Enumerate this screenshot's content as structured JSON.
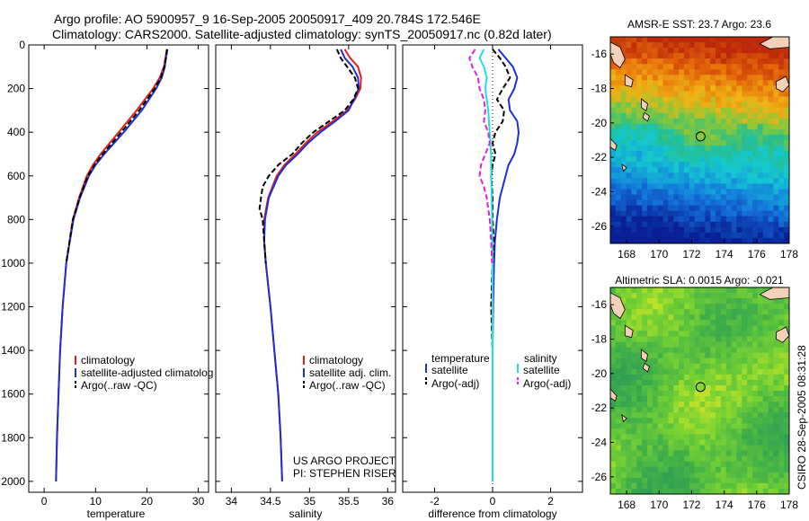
{
  "title_line1": "Argo profile: AO 5900957_9 16-Sep-2005 20050917_409 20.784S 172.546E",
  "title_line2": "Climatology: CARS2000. Satellite-adjusted climatology: synTS_20050917.nc (0.82d later)",
  "side_text": "CSIRO 28-Sep-2005 08:31:28",
  "project_line1": "US ARGO PROJECT",
  "project_line2": "PI: STEPHEN RISER",
  "colors": {
    "climatology": "#e02020",
    "satellite": "#2030d0",
    "argo": "#000000",
    "satellite_sal": "#20e0e0",
    "argo_sal": "#e020e0"
  },
  "chart_data": [
    {
      "type": "line",
      "xlabel": "temperature",
      "ylabel": "",
      "xlim": [
        -3,
        32
      ],
      "ylim": [
        2050,
        0
      ],
      "xticks": [
        0,
        10,
        20,
        30
      ],
      "yticks": [
        0,
        200,
        400,
        600,
        800,
        1000,
        1200,
        1400,
        1600,
        1800,
        2000
      ],
      "legend": {
        "position": "lower-right",
        "entries": [
          "climatology",
          "satellite-adjusted climatolog",
          "Argo(..raw -QC)"
        ]
      },
      "series": [
        {
          "name": "climatology",
          "color": "#e02020",
          "style": "solid",
          "depth": [
            20,
            60,
            100,
            150,
            200,
            300,
            400,
            500,
            550,
            600,
            700,
            800,
            1000,
            1200,
            1400,
            1600,
            1800,
            2000
          ],
          "values": [
            23.9,
            23.6,
            23.3,
            22.5,
            21.2,
            18.0,
            14.5,
            11.0,
            9.5,
            8.3,
            6.8,
            5.6,
            4.3,
            3.6,
            3.1,
            2.8,
            2.5,
            2.3
          ]
        },
        {
          "name": "satellite-adjusted climatolog",
          "color": "#2030d0",
          "style": "solid",
          "depth": [
            20,
            60,
            100,
            150,
            200,
            300,
            400,
            500,
            550,
            600,
            700,
            800,
            1000,
            1200,
            1400,
            1600,
            1800,
            2000
          ],
          "values": [
            24.0,
            23.7,
            23.5,
            22.9,
            21.8,
            19.0,
            15.5,
            11.7,
            10.0,
            8.7,
            7.0,
            5.7,
            4.3,
            3.6,
            3.1,
            2.8,
            2.5,
            2.3
          ]
        },
        {
          "name": "Argo(..raw -QC)",
          "color": "#000000",
          "style": "dashed",
          "depth": [
            20,
            60,
            100,
            150,
            200,
            300,
            400,
            500,
            550,
            600,
            700,
            800,
            1000
          ],
          "values": [
            23.9,
            23.7,
            23.4,
            22.7,
            21.5,
            18.5,
            15.0,
            11.4,
            9.8,
            8.5,
            6.9,
            5.6,
            4.3
          ]
        }
      ]
    },
    {
      "type": "line",
      "xlabel": "salinity",
      "ylabel": "",
      "xlim": [
        33.8,
        36.1
      ],
      "ylim": [
        2050,
        0
      ],
      "xticks": [
        34,
        34.5,
        35,
        35.5,
        36
      ],
      "yticks": [
        0,
        200,
        400,
        600,
        800,
        1000,
        1200,
        1400,
        1600,
        1800,
        2000
      ],
      "legend": {
        "position": "lower-right",
        "entries": [
          "climatology",
          "satellite adj. clim.",
          "Argo(..raw -QC)"
        ]
      },
      "series": [
        {
          "name": "climatology",
          "color": "#e02020",
          "style": "solid",
          "depth": [
            20,
            60,
            100,
            150,
            200,
            250,
            300,
            350,
            400,
            450,
            500,
            550,
            600,
            700,
            800,
            900,
            1000,
            1200,
            1400,
            1600,
            1800,
            2000
          ],
          "values": [
            35.45,
            35.52,
            35.62,
            35.66,
            35.65,
            35.58,
            35.48,
            35.3,
            35.1,
            34.95,
            34.82,
            34.68,
            34.58,
            34.47,
            34.42,
            34.42,
            34.44,
            34.5,
            34.55,
            34.6,
            34.63,
            34.65
          ]
        },
        {
          "name": "satellite adj. clim.",
          "color": "#2030d0",
          "style": "solid",
          "depth": [
            20,
            60,
            100,
            150,
            200,
            250,
            300,
            350,
            400,
            450,
            500,
            550,
            600,
            700,
            800,
            900,
            1000,
            1200,
            1400,
            1600,
            1800,
            2000
          ],
          "values": [
            35.4,
            35.45,
            35.55,
            35.62,
            35.63,
            35.57,
            35.5,
            35.33,
            35.14,
            34.98,
            34.85,
            34.7,
            34.6,
            34.48,
            34.43,
            34.42,
            34.44,
            34.5,
            34.55,
            34.6,
            34.63,
            34.65
          ]
        },
        {
          "name": "Argo(..raw -QC)",
          "color": "#000000",
          "style": "dashed",
          "depth": [
            20,
            60,
            100,
            150,
            200,
            250,
            300,
            350,
            400,
            450,
            500,
            550,
            600,
            650,
            700,
            750,
            800,
            900,
            1000
          ],
          "values": [
            35.35,
            35.4,
            35.48,
            35.58,
            35.62,
            35.56,
            35.45,
            35.25,
            35.05,
            34.9,
            34.78,
            34.6,
            34.48,
            34.4,
            34.38,
            34.36,
            34.4,
            34.42,
            34.44
          ]
        }
      ]
    },
    {
      "type": "line",
      "xlabel": "difference from climatology",
      "ylabel": "",
      "xlim": [
        -3.1,
        3.1
      ],
      "ylim": [
        2050,
        0
      ],
      "xticks": [
        -2,
        0,
        2
      ],
      "yticks": [
        0,
        200,
        400,
        600,
        800,
        1000,
        1200,
        1400,
        1600,
        1800,
        2000
      ],
      "legend": {
        "position": "lower-center",
        "headers": [
          "temperature",
          "salinity"
        ],
        "entries": [
          "satellite",
          "Argo(-adj)",
          "satellite",
          "Argo(-adj)"
        ]
      },
      "series": [
        {
          "name": "satellite",
          "group": "temperature",
          "color": "#2030d0",
          "style": "solid",
          "depth": [
            20,
            60,
            100,
            150,
            200,
            250,
            300,
            350,
            400,
            450,
            500,
            550,
            600,
            700,
            800,
            900,
            1000,
            1200,
            1400,
            1600,
            1800,
            2000
          ],
          "values": [
            0.2,
            0.45,
            0.7,
            0.85,
            0.75,
            0.55,
            0.6,
            0.85,
            0.9,
            0.85,
            0.75,
            0.55,
            0.45,
            0.25,
            0.15,
            0.08,
            0.05,
            0.02,
            0.0,
            0.0,
            0.0,
            0.0
          ]
        },
        {
          "name": "Argo(-adj)",
          "group": "temperature",
          "color": "#000000",
          "style": "dashed",
          "depth": [
            20,
            60,
            100,
            150,
            200,
            250,
            300,
            350,
            400,
            450,
            500,
            550,
            600,
            700,
            800,
            900,
            1000,
            1200,
            1400
          ],
          "values": [
            0.0,
            0.25,
            0.45,
            0.6,
            0.35,
            0.15,
            0.4,
            0.35,
            0.1,
            0.0,
            0.1,
            0.0,
            -0.05,
            0.0,
            0.0,
            0.05,
            0.0,
            -0.05,
            0.0
          ]
        },
        {
          "name": "satellite",
          "group": "salinity",
          "color": "#20e0e0",
          "style": "solid",
          "depth": [
            20,
            60,
            100,
            150,
            200,
            250,
            300,
            400,
            500,
            600,
            700,
            800,
            1000,
            1200,
            1400,
            1600,
            1800,
            2000
          ],
          "values": [
            -0.3,
            -0.45,
            -0.3,
            -0.2,
            -0.25,
            -0.2,
            -0.15,
            -0.1,
            -0.05,
            -0.05,
            -0.03,
            -0.02,
            0.0,
            0.0,
            0.0,
            0.0,
            0.0,
            0.0
          ]
        },
        {
          "name": "Argo(-adj)",
          "group": "salinity",
          "color": "#e020e0",
          "style": "dashed",
          "depth": [
            20,
            60,
            100,
            150,
            200,
            250,
            300,
            350,
            400,
            450,
            500,
            550,
            600,
            650,
            700,
            800,
            900,
            1000
          ],
          "values": [
            -0.6,
            -0.8,
            -0.7,
            -0.5,
            -0.45,
            -0.3,
            -0.25,
            -0.3,
            -0.15,
            -0.1,
            -0.25,
            -0.4,
            -0.45,
            -0.3,
            -0.2,
            -0.1,
            -0.05,
            -0.02
          ]
        }
      ]
    },
    {
      "type": "heatmap",
      "title": "AMSR-E SST: 23.7 Argo: 23.6",
      "xlim": [
        167,
        178
      ],
      "ylim": [
        -27,
        -15
      ],
      "xticks": [
        168,
        170,
        172,
        174,
        176,
        178
      ],
      "yticks": [
        -16,
        -18,
        -20,
        -22,
        -24,
        -26
      ],
      "marker": {
        "lon": 172.546,
        "lat": -20.784
      }
    },
    {
      "type": "heatmap",
      "title": "Altimetric SLA: 0.0015 Argo: -0.021",
      "xlim": [
        167,
        178
      ],
      "ylim": [
        -27,
        -15
      ],
      "xticks": [
        168,
        170,
        172,
        174,
        176,
        178
      ],
      "yticks": [
        -16,
        -18,
        -20,
        -22,
        -24,
        -26
      ],
      "marker": {
        "lon": 172.546,
        "lat": -20.784
      }
    }
  ]
}
